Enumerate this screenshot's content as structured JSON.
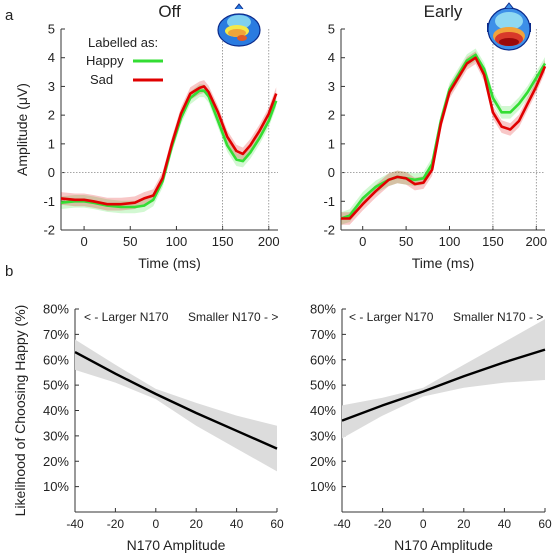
{
  "panel_labels": {
    "a": "a",
    "b": "b"
  },
  "legend": {
    "heading": "Labelled as:",
    "happy": "Happy",
    "sad": "Sad"
  },
  "annotations": {
    "larger": "< -  Larger N170",
    "smaller": "Smaller N170  - >"
  },
  "colors": {
    "happy": "#33dd33",
    "sad": "#e00000",
    "regression": "#000000",
    "ci_band": "#dcdcdc"
  },
  "icons": [
    "scalp-topography-map"
  ],
  "chart_data": [
    {
      "id": "erp_off",
      "type": "line",
      "title": "Off",
      "xlabel": "Time (ms)",
      "ylabel": "Amplitude (μV)",
      "xlim": [
        -25,
        210
      ],
      "ylim": [
        -2,
        5
      ],
      "xticks": [
        0,
        50,
        100,
        150,
        200
      ],
      "yticks": [
        -2,
        -1,
        0,
        1,
        2,
        3,
        4,
        5
      ],
      "vlines": [
        150,
        200
      ],
      "hline": 0,
      "x": [
        -25,
        -10,
        0,
        10,
        25,
        40,
        55,
        65,
        75,
        85,
        95,
        105,
        115,
        125,
        130,
        135,
        145,
        155,
        165,
        172,
        180,
        190,
        200,
        208
      ],
      "series": [
        {
          "name": "Happy",
          "color": "#33dd33",
          "band": 0.22,
          "values": [
            -1.05,
            -1.0,
            -1.0,
            -1.05,
            -1.15,
            -1.2,
            -1.2,
            -1.15,
            -0.95,
            -0.3,
            0.9,
            1.9,
            2.6,
            2.85,
            2.85,
            2.65,
            1.8,
            0.95,
            0.45,
            0.4,
            0.7,
            1.2,
            1.8,
            2.5
          ]
        },
        {
          "name": "Sad",
          "color": "#e00000",
          "band": 0.22,
          "values": [
            -0.9,
            -0.95,
            -0.95,
            -1.0,
            -1.1,
            -1.1,
            -1.05,
            -0.9,
            -0.8,
            -0.2,
            1.0,
            2.05,
            2.75,
            2.95,
            3.0,
            2.8,
            2.1,
            1.25,
            0.75,
            0.65,
            0.95,
            1.45,
            2.05,
            2.75
          ]
        }
      ]
    },
    {
      "id": "erp_early",
      "type": "line",
      "title": "Early",
      "xlabel": "Time (ms)",
      "ylabel": "",
      "xlim": [
        -25,
        210
      ],
      "ylim": [
        -2,
        5
      ],
      "xticks": [
        0,
        50,
        100,
        150,
        200
      ],
      "yticks": [
        -2,
        -1,
        0,
        1,
        2,
        3,
        4,
        5
      ],
      "vlines": [
        150,
        200
      ],
      "hline": 0,
      "x": [
        -25,
        -15,
        0,
        15,
        30,
        40,
        50,
        60,
        70,
        80,
        90,
        100,
        110,
        120,
        130,
        140,
        150,
        160,
        170,
        180,
        190,
        200,
        210
      ],
      "series": [
        {
          "name": "Happy",
          "color": "#33dd33",
          "band": 0.22,
          "values": [
            -1.6,
            -1.5,
            -0.9,
            -0.5,
            -0.25,
            -0.15,
            -0.2,
            -0.25,
            -0.2,
            0.3,
            1.8,
            2.9,
            3.4,
            3.9,
            4.1,
            3.6,
            2.6,
            2.1,
            2.1,
            2.4,
            2.8,
            3.3,
            3.8
          ]
        },
        {
          "name": "Sad",
          "color": "#e00000",
          "band": 0.22,
          "values": [
            -1.6,
            -1.6,
            -1.1,
            -0.65,
            -0.25,
            -0.15,
            -0.2,
            -0.4,
            -0.35,
            0.1,
            1.7,
            2.8,
            3.3,
            3.8,
            4.0,
            3.4,
            2.1,
            1.6,
            1.5,
            1.8,
            2.4,
            3.0,
            3.7
          ]
        }
      ]
    },
    {
      "id": "reg_off",
      "type": "line",
      "title": "",
      "xlabel": "N170 Amplitude",
      "ylabel": "Likelihood of Choosing Happy (%)",
      "xlim": [
        -40,
        60
      ],
      "ylim": [
        0,
        80
      ],
      "xticks": [
        -40,
        -20,
        0,
        20,
        40,
        60
      ],
      "yticks": [
        10,
        20,
        30,
        40,
        50,
        60,
        70,
        80
      ],
      "ytick_labels": [
        "10%",
        "20%",
        "30%",
        "40%",
        "50%",
        "60%",
        "70%",
        "80%"
      ],
      "x": [
        -40,
        -20,
        0,
        20,
        40,
        60
      ],
      "series": [
        {
          "name": "",
          "color": "#000000",
          "values": [
            63,
            54.5,
            46.5,
            39,
            32,
            25
          ],
          "ci_upper": [
            68,
            58,
            48.5,
            43,
            38,
            34
          ],
          "ci_lower": [
            56,
            51,
            44.5,
            34,
            25,
            16
          ]
        }
      ]
    },
    {
      "id": "reg_early",
      "type": "line",
      "title": "",
      "xlabel": "N170 Amplitude",
      "ylabel": "",
      "xlim": [
        -40,
        60
      ],
      "ylim": [
        0,
        80
      ],
      "xticks": [
        -40,
        -20,
        0,
        20,
        40,
        60
      ],
      "yticks": [
        10,
        20,
        30,
        40,
        50,
        60,
        70,
        80
      ],
      "ytick_labels": [
        "10%",
        "20%",
        "30%",
        "40%",
        "50%",
        "60%",
        "70%",
        "80%"
      ],
      "x": [
        -40,
        -20,
        0,
        20,
        40,
        60
      ],
      "series": [
        {
          "name": "",
          "color": "#000000",
          "values": [
            36,
            42,
            47.5,
            53.5,
            59,
            64
          ],
          "ci_upper": [
            42,
            45,
            49,
            58,
            67,
            76
          ],
          "ci_lower": [
            29,
            38,
            45.5,
            49,
            51,
            52
          ]
        }
      ]
    }
  ]
}
